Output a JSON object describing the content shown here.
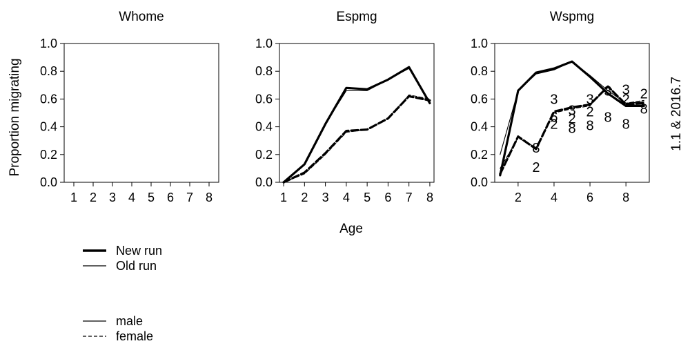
{
  "shared": {
    "ylabel": "Proportion migrating",
    "xlabel": "Age",
    "side_label": "1.1 & 2016.7",
    "ytick_labels": [
      "0.0",
      "0.2",
      "0.4",
      "0.6",
      "0.8",
      "1.0"
    ]
  },
  "legend": {
    "run_items": [
      {
        "label": "New run",
        "style": "thick"
      },
      {
        "label": "Old run",
        "style": "thin"
      }
    ],
    "sex_items": [
      {
        "label": "male",
        "style": "solid"
      },
      {
        "label": "female",
        "style": "dashed"
      }
    ]
  },
  "chart_data": [
    {
      "type": "line",
      "title": "Whome",
      "xlim": [
        0.5,
        8.5
      ],
      "ylim": [
        0,
        1
      ],
      "xticks": [
        1,
        2,
        3,
        4,
        5,
        6,
        7,
        8
      ],
      "xtick_labels": [
        "1",
        "2",
        "3",
        "4",
        "5",
        "6",
        "7",
        "8"
      ],
      "series": []
    },
    {
      "type": "line",
      "title": "Espmg",
      "xlim": [
        0.8,
        8.2
      ],
      "ylim": [
        0,
        1
      ],
      "xticks": [
        1,
        2,
        3,
        4,
        5,
        6,
        7,
        8
      ],
      "xtick_labels": [
        "1",
        "2",
        "3",
        "4",
        "5",
        "6",
        "7",
        "8"
      ],
      "series": [
        {
          "run": "new",
          "sex": "male",
          "x": [
            1,
            2,
            3,
            4,
            5,
            6,
            7,
            8
          ],
          "y": [
            0.0,
            0.13,
            0.42,
            0.68,
            0.67,
            0.74,
            0.83,
            0.57
          ]
        },
        {
          "run": "old",
          "sex": "male",
          "x": [
            1,
            2,
            3,
            4,
            5,
            6,
            7,
            8
          ],
          "y": [
            0.0,
            0.13,
            0.42,
            0.66,
            0.66,
            0.74,
            0.82,
            0.58
          ]
        },
        {
          "run": "new",
          "sex": "female",
          "x": [
            1,
            2,
            3,
            4,
            5,
            6,
            7,
            8
          ],
          "y": [
            0.0,
            0.07,
            0.21,
            0.37,
            0.38,
            0.46,
            0.62,
            0.59
          ]
        },
        {
          "run": "old",
          "sex": "female",
          "x": [
            1,
            2,
            3,
            4,
            5,
            6,
            7,
            8
          ],
          "y": [
            0.0,
            0.06,
            0.2,
            0.36,
            0.38,
            0.46,
            0.63,
            0.6
          ]
        }
      ]
    },
    {
      "type": "line",
      "title": "Wspmg",
      "xlim": [
        0.7,
        9.3
      ],
      "ylim": [
        0,
        1
      ],
      "xticks": [
        2,
        4,
        6,
        8
      ],
      "xtick_labels": [
        "2",
        "4",
        "6",
        "8"
      ],
      "series": [
        {
          "run": "new",
          "sex": "male",
          "x": [
            1,
            2,
            3,
            4,
            5,
            6,
            7,
            8,
            9
          ],
          "y": [
            0.05,
            0.66,
            0.79,
            0.82,
            0.87,
            0.76,
            0.64,
            0.55,
            0.55
          ]
        },
        {
          "run": "old",
          "sex": "male",
          "x": [
            1,
            2,
            3,
            4,
            5,
            6,
            7,
            8,
            9
          ],
          "y": [
            0.2,
            0.66,
            0.78,
            0.81,
            0.87,
            0.77,
            0.66,
            0.57,
            0.58
          ]
        },
        {
          "run": "new",
          "sex": "female",
          "x": [
            1,
            2,
            3,
            4,
            5,
            6,
            7,
            8,
            9
          ],
          "y": [
            0.06,
            0.33,
            0.24,
            0.51,
            0.54,
            0.56,
            0.69,
            0.56,
            0.57
          ]
        },
        {
          "run": "old",
          "sex": "female",
          "x": [
            1,
            2,
            3,
            4,
            5,
            6,
            7,
            8,
            9
          ],
          "y": [
            0.1,
            0.32,
            0.25,
            0.5,
            0.53,
            0.55,
            0.69,
            0.57,
            0.59
          ]
        }
      ],
      "point_labels": [
        {
          "text": "8",
          "x": 3,
          "y": 0.25
        },
        {
          "text": "2",
          "x": 3,
          "y": 0.11
        },
        {
          "text": "3",
          "x": 4,
          "y": 0.6
        },
        {
          "text": "6",
          "x": 4,
          "y": 0.47
        },
        {
          "text": "2",
          "x": 4,
          "y": 0.42
        },
        {
          "text": "3",
          "x": 5,
          "y": 0.52
        },
        {
          "text": "2",
          "x": 5,
          "y": 0.46
        },
        {
          "text": "8",
          "x": 5,
          "y": 0.39
        },
        {
          "text": "3",
          "x": 6,
          "y": 0.6
        },
        {
          "text": "2",
          "x": 6,
          "y": 0.51
        },
        {
          "text": "8",
          "x": 6,
          "y": 0.41
        },
        {
          "text": "3",
          "x": 7,
          "y": 0.66
        },
        {
          "text": "8",
          "x": 7,
          "y": 0.47
        },
        {
          "text": "3",
          "x": 8,
          "y": 0.67
        },
        {
          "text": "2",
          "x": 8,
          "y": 0.6
        },
        {
          "text": "8",
          "x": 8,
          "y": 0.42
        },
        {
          "text": "2",
          "x": 9,
          "y": 0.64
        },
        {
          "text": "8",
          "x": 9,
          "y": 0.53
        }
      ]
    }
  ]
}
